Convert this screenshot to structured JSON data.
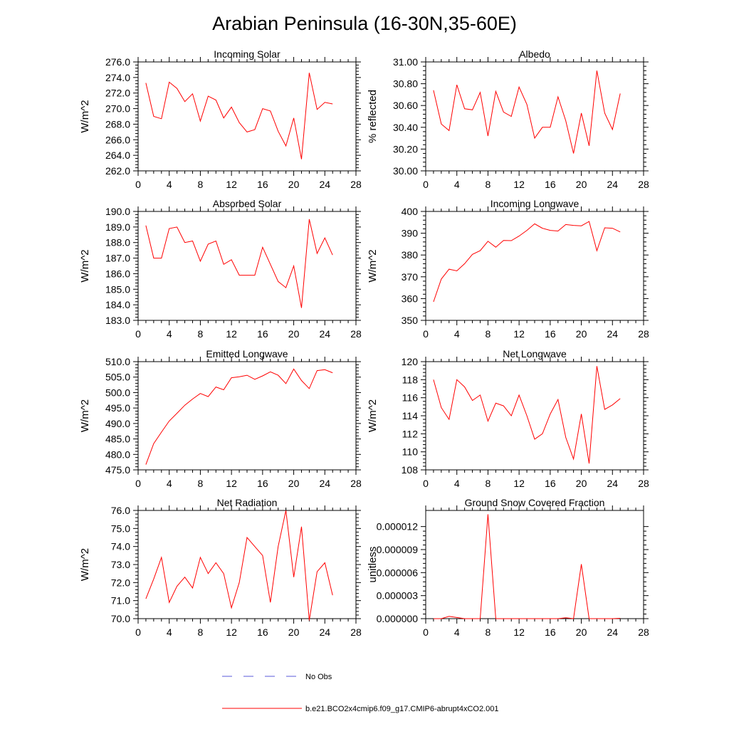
{
  "title": "Arabian Peninsula (16-30N,35-60E)",
  "legend": [
    {
      "label": "No Obs",
      "color": "#5a5ad8",
      "style": "dashed"
    },
    {
      "label": "b.e21.BCO2x4cmip6.f09_g17.CMIP6-abrupt4xCO2.001",
      "color": "#ff0000",
      "style": "solid"
    }
  ],
  "chart_data": [
    {
      "type": "line",
      "title": "Incoming Solar",
      "ylabel": "W/m^2",
      "xlim": [
        0,
        28
      ],
      "ylim": [
        262,
        276
      ],
      "xticks": [
        0,
        4,
        8,
        12,
        16,
        20,
        24,
        28
      ],
      "xtick_labels": [
        "0",
        "4",
        "8",
        "12",
        "16",
        "20",
        "24",
        "28"
      ],
      "yticks": [
        262,
        264,
        266,
        268,
        270,
        272,
        274,
        276
      ],
      "ytick_labels": [
        "262.0",
        "264.0",
        "266.0",
        "268.0",
        "270.0",
        "272.0",
        "274.0",
        "276.0"
      ],
      "series": [
        {
          "color": "#ff0000",
          "x": [
            1,
            2,
            3,
            4,
            5,
            6,
            7,
            8,
            9,
            10,
            11,
            12,
            13,
            14,
            15,
            16,
            17,
            18,
            19,
            20,
            21,
            22,
            23,
            24,
            25
          ],
          "values": [
            273.3,
            269.0,
            268.7,
            273.4,
            272.6,
            270.9,
            271.9,
            268.4,
            271.6,
            271.1,
            268.8,
            270.2,
            268.2,
            267.0,
            267.3,
            270.0,
            269.7,
            267.1,
            265.2,
            268.8,
            263.5,
            274.6,
            269.9,
            270.8,
            270.6
          ]
        }
      ]
    },
    {
      "type": "line",
      "title": "Albedo",
      "ylabel": "% reflected",
      "xlim": [
        0,
        28
      ],
      "ylim": [
        30.0,
        31.0
      ],
      "xticks": [
        0,
        4,
        8,
        12,
        16,
        20,
        24,
        28
      ],
      "xtick_labels": [
        "0",
        "4",
        "8",
        "12",
        "16",
        "20",
        "24",
        "28"
      ],
      "yticks": [
        30.0,
        30.2,
        30.4,
        30.6,
        30.8,
        31.0
      ],
      "ytick_labels": [
        "30.00",
        "30.20",
        "30.40",
        "30.60",
        "30.80",
        "31.00"
      ],
      "series": [
        {
          "color": "#ff0000",
          "x": [
            1,
            2,
            3,
            4,
            5,
            6,
            7,
            8,
            9,
            10,
            11,
            12,
            13,
            14,
            15,
            16,
            17,
            18,
            19,
            20,
            21,
            22,
            23,
            24,
            25
          ],
          "values": [
            30.74,
            30.43,
            30.37,
            30.79,
            30.57,
            30.56,
            30.72,
            30.32,
            30.73,
            30.54,
            30.5,
            30.77,
            30.61,
            30.3,
            30.4,
            30.4,
            30.68,
            30.46,
            30.16,
            30.53,
            30.23,
            30.92,
            30.53,
            30.38,
            30.71
          ]
        }
      ]
    },
    {
      "type": "line",
      "title": "Absorbed Solar",
      "ylabel": "W/m^2",
      "xlim": [
        0,
        28
      ],
      "ylim": [
        183,
        190
      ],
      "xticks": [
        0,
        4,
        8,
        12,
        16,
        20,
        24,
        28
      ],
      "xtick_labels": [
        "0",
        "4",
        "8",
        "12",
        "16",
        "20",
        "24",
        "28"
      ],
      "yticks": [
        183,
        184,
        185,
        186,
        187,
        188,
        189,
        190
      ],
      "ytick_labels": [
        "183.0",
        "184.0",
        "185.0",
        "186.0",
        "187.0",
        "188.0",
        "189.0",
        "190.0"
      ],
      "series": [
        {
          "color": "#ff0000",
          "x": [
            1,
            2,
            3,
            4,
            5,
            6,
            7,
            8,
            9,
            10,
            11,
            12,
            13,
            14,
            15,
            16,
            17,
            18,
            19,
            20,
            21,
            22,
            23,
            24,
            25
          ],
          "values": [
            189.1,
            187.0,
            187.0,
            188.9,
            189.0,
            188.0,
            188.1,
            186.8,
            187.9,
            188.1,
            186.6,
            186.9,
            185.9,
            185.9,
            185.9,
            187.7,
            186.6,
            185.5,
            185.1,
            186.5,
            183.8,
            189.5,
            187.3,
            188.3,
            187.2
          ]
        }
      ]
    },
    {
      "type": "line",
      "title": "Incoming Longwave",
      "ylabel": "W/m^2",
      "xlim": [
        0,
        28
      ],
      "ylim": [
        350,
        400
      ],
      "xticks": [
        0,
        4,
        8,
        12,
        16,
        20,
        24,
        28
      ],
      "xtick_labels": [
        "0",
        "4",
        "8",
        "12",
        "16",
        "20",
        "24",
        "28"
      ],
      "yticks": [
        350,
        360,
        370,
        380,
        390,
        400
      ],
      "ytick_labels": [
        "350",
        "360",
        "370",
        "380",
        "390",
        "400"
      ],
      "series": [
        {
          "color": "#ff0000",
          "x": [
            1,
            2,
            3,
            4,
            5,
            6,
            7,
            8,
            9,
            10,
            11,
            12,
            13,
            14,
            15,
            16,
            17,
            18,
            19,
            20,
            21,
            22,
            23,
            24,
            25
          ],
          "values": [
            358.5,
            369.0,
            373.5,
            372.7,
            376.0,
            380.3,
            382.0,
            386.3,
            383.6,
            386.7,
            386.6,
            388.7,
            391.3,
            394.3,
            392.3,
            391.3,
            391.0,
            394.0,
            393.6,
            393.4,
            395.4,
            382.0,
            392.5,
            392.3,
            390.6
          ]
        }
      ]
    },
    {
      "type": "line",
      "title": "Emitted Longwave",
      "ylabel": "W/m^2",
      "xlim": [
        0,
        28
      ],
      "ylim": [
        475,
        510
      ],
      "xticks": [
        0,
        4,
        8,
        12,
        16,
        20,
        24,
        28
      ],
      "xtick_labels": [
        "0",
        "4",
        "8",
        "12",
        "16",
        "20",
        "24",
        "28"
      ],
      "yticks": [
        475,
        480,
        485,
        490,
        495,
        500,
        505,
        510
      ],
      "ytick_labels": [
        "475.0",
        "480.0",
        "485.0",
        "490.0",
        "495.0",
        "500.0",
        "505.0",
        "510.0"
      ],
      "series": [
        {
          "color": "#ff0000",
          "x": [
            1,
            2,
            3,
            4,
            5,
            6,
            7,
            8,
            9,
            10,
            11,
            12,
            13,
            14,
            15,
            16,
            17,
            18,
            19,
            20,
            21,
            22,
            23,
            24,
            25
          ],
          "values": [
            476.7,
            483.5,
            487.2,
            490.8,
            493.3,
            495.9,
            497.9,
            499.7,
            498.7,
            501.8,
            500.9,
            504.8,
            505.1,
            505.6,
            504.3,
            505.4,
            506.7,
            505.6,
            502.9,
            507.6,
            503.9,
            501.3,
            507.1,
            507.4,
            506.4
          ]
        }
      ]
    },
    {
      "type": "line",
      "title": "Net Longwave",
      "ylabel": "W/m^2",
      "xlim": [
        0,
        28
      ],
      "ylim": [
        108,
        120
      ],
      "xticks": [
        0,
        4,
        8,
        12,
        16,
        20,
        24,
        28
      ],
      "xtick_labels": [
        "0",
        "4",
        "8",
        "12",
        "16",
        "20",
        "24",
        "28"
      ],
      "yticks": [
        108,
        110,
        112,
        114,
        116,
        118,
        120
      ],
      "ytick_labels": [
        "108",
        "110",
        "112",
        "114",
        "116",
        "118",
        "120"
      ],
      "series": [
        {
          "color": "#ff0000",
          "x": [
            1,
            2,
            3,
            4,
            5,
            6,
            7,
            8,
            9,
            10,
            11,
            12,
            13,
            14,
            15,
            16,
            17,
            18,
            19,
            20,
            21,
            22,
            23,
            24,
            25
          ],
          "values": [
            118.0,
            114.9,
            113.6,
            118.0,
            117.2,
            115.7,
            116.3,
            113.4,
            115.4,
            115.1,
            114.0,
            116.3,
            114.0,
            111.4,
            112.0,
            114.2,
            115.8,
            111.6,
            109.2,
            114.2,
            108.7,
            119.5,
            114.7,
            115.2,
            115.9
          ]
        }
      ]
    },
    {
      "type": "line",
      "title": "Net Radiation",
      "ylabel": "W/m^2",
      "xlim": [
        0,
        28
      ],
      "ylim": [
        70,
        76
      ],
      "xticks": [
        0,
        4,
        8,
        12,
        16,
        20,
        24,
        28
      ],
      "xtick_labels": [
        "0",
        "4",
        "8",
        "12",
        "16",
        "20",
        "24",
        "28"
      ],
      "yticks": [
        70,
        71,
        72,
        73,
        74,
        75,
        76
      ],
      "ytick_labels": [
        "70.0",
        "71.0",
        "72.0",
        "73.0",
        "74.0",
        "75.0",
        "76.0"
      ],
      "series": [
        {
          "color": "#ff0000",
          "x": [
            1,
            2,
            3,
            4,
            5,
            6,
            7,
            8,
            9,
            10,
            11,
            12,
            13,
            14,
            15,
            16,
            17,
            18,
            19,
            20,
            21,
            22,
            23,
            24,
            25
          ],
          "values": [
            71.1,
            72.2,
            73.4,
            70.9,
            71.8,
            72.3,
            71.7,
            73.4,
            72.5,
            73.1,
            72.5,
            70.6,
            72.0,
            74.5,
            74.0,
            73.5,
            70.9,
            74.0,
            76.0,
            72.3,
            75.1,
            69.9,
            72.6,
            73.1,
            71.3
          ]
        }
      ]
    },
    {
      "type": "line",
      "title": "Ground Snow Covered Fraction",
      "ylabel": "unitless",
      "xlim": [
        0,
        28
      ],
      "ylim": [
        0,
        1.41e-05
      ],
      "xticks": [
        0,
        4,
        8,
        12,
        16,
        20,
        24,
        28
      ],
      "xtick_labels": [
        "0",
        "4",
        "8",
        "12",
        "16",
        "20",
        "24",
        "28"
      ],
      "yticks": [
        0,
        3e-06,
        6e-06,
        9e-06,
        1.2e-05
      ],
      "ytick_labels": [
        "0.000000",
        "0.000003",
        "0.000006",
        "0.000009",
        "0.000012"
      ],
      "series": [
        {
          "color": "#ff0000",
          "x": [
            1,
            2,
            3,
            4,
            5,
            6,
            7,
            8,
            9,
            10,
            11,
            12,
            13,
            14,
            15,
            16,
            17,
            18,
            19,
            20,
            21,
            22,
            23,
            24,
            25
          ],
          "values": [
            0,
            0,
            3e-07,
            1.5e-07,
            0,
            0,
            0,
            1.36e-05,
            0,
            0,
            0,
            0,
            0,
            0,
            0,
            0,
            0,
            1.2e-07,
            0,
            7.1e-06,
            0,
            0,
            0,
            0,
            5e-08
          ]
        }
      ]
    }
  ]
}
